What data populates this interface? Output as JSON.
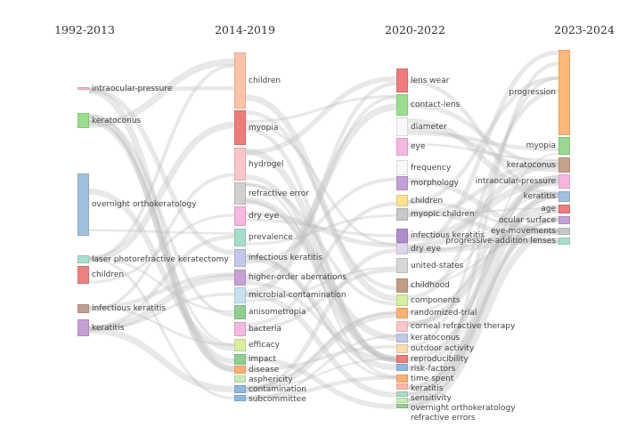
{
  "columns": [
    {
      "title": "1992-2013",
      "nodes": [
        {
          "label": "intraocular-pressure",
          "color": "#f7b6d2"
        },
        {
          "label": "keratoconus",
          "color": "#98df8a"
        },
        {
          "label": "overnight orthokeratology",
          "color": "#9ec1e0"
        },
        {
          "label": "laser photorefractive keratectomy",
          "color": "#a8e0d0"
        },
        {
          "label": "children",
          "color": "#f08080"
        },
        {
          "label": "infectious keratitis",
          "color": "#c49c94"
        },
        {
          "label": "keratitis",
          "color": "#c5a0d8"
        }
      ]
    },
    {
      "title": "2014-2019",
      "nodes": [
        {
          "label": "children",
          "color": "#ffc2a8"
        },
        {
          "label": "myopia",
          "color": "#ef7b7b"
        },
        {
          "label": "hydrogel",
          "color": "#fcc6c8"
        },
        {
          "label": "refractive error",
          "color": "#d0d0d0"
        },
        {
          "label": "dry eye",
          "color": "#f7b6e0"
        },
        {
          "label": "prevalence",
          "color": "#a5dccb"
        },
        {
          "label": "infectious keratitis",
          "color": "#c3c8e8"
        },
        {
          "label": "higher-order aberrations",
          "color": "#c9a0d8"
        },
        {
          "label": "microbial-contamination",
          "color": "#c6e2ef"
        },
        {
          "label": "anisometropia",
          "color": "#8fd08f"
        },
        {
          "label": "bacteria",
          "color": "#f5b8e0"
        },
        {
          "label": "efficacy",
          "color": "#d6ef9c"
        },
        {
          "label": "impact",
          "color": "#8fd08f"
        },
        {
          "label": "disease",
          "color": "#ffb070"
        },
        {
          "label": "asphericity",
          "color": "#c9eab4"
        },
        {
          "label": "contamination",
          "color": "#8fb8e0"
        },
        {
          "label": "subcommittee",
          "color": "#8fb8e0"
        }
      ]
    },
    {
      "title": "2020-2022",
      "nodes": [
        {
          "label": "lens wear",
          "color": "#ef7b7b"
        },
        {
          "label": "contact-lens",
          "color": "#98df8a"
        },
        {
          "label": "diameter",
          "color": "#f8f8f8"
        },
        {
          "label": "eye",
          "color": "#f7b6e0"
        },
        {
          "label": "frequency",
          "color": "#f8f8f8"
        },
        {
          "label": "morphology",
          "color": "#c5a0d8"
        },
        {
          "label": "children",
          "color": "#fde28c"
        },
        {
          "label": "myopic children",
          "color": "#c8c8c8"
        },
        {
          "label": "infectious keratitis",
          "color": "#b08ccc"
        },
        {
          "label": "dry eye",
          "color": "#e0d6ea"
        },
        {
          "label": "united-states",
          "color": "#d6d6d6"
        },
        {
          "label": "childhood",
          "color": "#c49c84"
        },
        {
          "label": "components",
          "color": "#d6ef9c"
        },
        {
          "label": "randomized-trial",
          "color": "#ffb070"
        },
        {
          "label": "corneal refractive therapy",
          "color": "#fcc6c8"
        },
        {
          "label": "keratoconus",
          "color": "#c3c8e8"
        },
        {
          "label": "outdoor activity",
          "color": "#ffdcae"
        },
        {
          "label": "reproducibility",
          "color": "#ef7b7b"
        },
        {
          "label": "risk-factors",
          "color": "#8fb8e0"
        },
        {
          "label": "time spent",
          "color": "#ffb070"
        },
        {
          "label": "keratitis",
          "color": "#ffb8a8"
        },
        {
          "label": "sensitivity",
          "color": "#a5dccb"
        },
        {
          "label": "overnight orthokeratology",
          "color": "#c9eab4"
        },
        {
          "label": "refractive errors",
          "color": "#8fd08f"
        }
      ]
    },
    {
      "title": "2023-2024",
      "nodes": [
        {
          "label": "progression",
          "color": "#ffb878"
        },
        {
          "label": "myopia",
          "color": "#98d890"
        },
        {
          "label": "keratoconus",
          "color": "#c8a088"
        },
        {
          "label": "intraocular-pressure",
          "color": "#f7b6e0"
        },
        {
          "label": "keratitis",
          "color": "#9ec1e0"
        },
        {
          "label": "age",
          "color": "#ef7b7b"
        },
        {
          "label": "ocular surface",
          "color": "#c5a0d8"
        },
        {
          "label": "eye-movements",
          "color": "#c8c8c8"
        },
        {
          "label": "progressive-addition lenses",
          "color": "#a8e0d0"
        }
      ]
    }
  ],
  "flow_color": "#bdbdbd"
}
